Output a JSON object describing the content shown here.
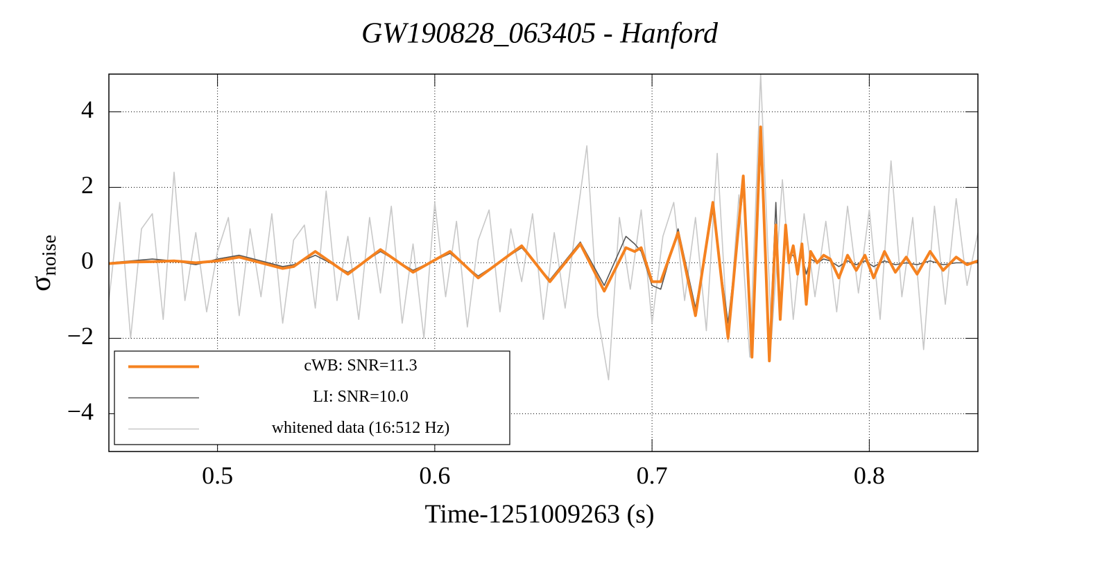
{
  "chart_data": {
    "type": "line",
    "title": "GW190828_063405 - Hanford",
    "xlabel": "Time-1251009263 (s)",
    "ylabel": {
      "symbol": "σ",
      "subscript": "noise"
    },
    "xlim": [
      0.45,
      0.85
    ],
    "ylim": [
      -5,
      5
    ],
    "xticks": [
      0.5,
      0.6,
      0.7,
      0.8
    ],
    "yticks": [
      {
        "value": -4,
        "label": "−4"
      },
      {
        "value": -2,
        "label": "−2"
      },
      0,
      2,
      4
    ],
    "grid": true,
    "legend": "lower left",
    "series": [
      {
        "name": "cWB: SNR=11.3",
        "color": "#f58220",
        "x": [
          0.45,
          0.46,
          0.47,
          0.48,
          0.49,
          0.5,
          0.51,
          0.52,
          0.53,
          0.535,
          0.545,
          0.56,
          0.575,
          0.59,
          0.607,
          0.62,
          0.64,
          0.653,
          0.667,
          0.678,
          0.688,
          0.692,
          0.695,
          0.7,
          0.704,
          0.712,
          0.72,
          0.728,
          0.735,
          0.742,
          0.746,
          0.75,
          0.754,
          0.757,
          0.759,
          0.7615,
          0.763,
          0.765,
          0.767,
          0.769,
          0.771,
          0.773,
          0.776,
          0.779,
          0.782,
          0.786,
          0.79,
          0.794,
          0.798,
          0.802,
          0.807,
          0.812,
          0.817,
          0.822,
          0.828,
          0.834,
          0.84,
          0.845,
          0.85
        ],
        "values": [
          -0.02,
          0.02,
          0.03,
          0.05,
          0.0,
          0.05,
          0.15,
          0.0,
          -0.15,
          -0.1,
          0.3,
          -0.3,
          0.35,
          -0.25,
          0.3,
          -0.4,
          0.45,
          -0.5,
          0.5,
          -0.75,
          0.4,
          0.3,
          0.4,
          -0.5,
          -0.5,
          0.8,
          -1.4,
          1.6,
          -2.0,
          2.3,
          -2.5,
          3.6,
          -2.6,
          1.0,
          -1.5,
          1.0,
          0.0,
          0.45,
          -0.3,
          0.5,
          -1.1,
          0.3,
          0.0,
          0.2,
          0.1,
          -0.4,
          0.2,
          -0.2,
          0.2,
          -0.4,
          0.3,
          -0.25,
          0.15,
          -0.3,
          0.3,
          -0.2,
          0.15,
          -0.05,
          0.05
        ]
      },
      {
        "name": "LI: SNR=10.0",
        "color": "#555555",
        "x": [
          0.45,
          0.46,
          0.47,
          0.48,
          0.49,
          0.5,
          0.51,
          0.52,
          0.53,
          0.535,
          0.545,
          0.56,
          0.575,
          0.59,
          0.607,
          0.62,
          0.64,
          0.653,
          0.667,
          0.678,
          0.688,
          0.692,
          0.695,
          0.7,
          0.704,
          0.712,
          0.72,
          0.728,
          0.735,
          0.742,
          0.746,
          0.75,
          0.754,
          0.757,
          0.759,
          0.7615,
          0.763,
          0.765,
          0.767,
          0.769,
          0.771,
          0.773,
          0.776,
          0.779,
          0.782,
          0.786,
          0.79,
          0.794,
          0.798,
          0.802,
          0.807,
          0.812,
          0.817,
          0.822,
          0.828,
          0.834,
          0.84,
          0.845,
          0.85
        ],
        "values": [
          0.0,
          0.05,
          0.1,
          0.05,
          -0.05,
          0.1,
          0.2,
          0.05,
          -0.1,
          -0.05,
          0.2,
          -0.25,
          0.3,
          -0.2,
          0.25,
          -0.35,
          0.4,
          -0.45,
          0.55,
          -0.6,
          0.7,
          0.5,
          0.3,
          -0.6,
          -0.7,
          0.9,
          -1.2,
          1.4,
          -1.6,
          2.0,
          -2.2,
          3.0,
          -2.4,
          1.6,
          -1.4,
          0.6,
          0.2,
          0.2,
          -0.1,
          0.2,
          -0.3,
          0.1,
          0.0,
          0.1,
          0.05,
          -0.1,
          0.05,
          -0.05,
          0.05,
          -0.1,
          0.05,
          -0.05,
          0.0,
          -0.05,
          0.05,
          -0.05,
          0.0,
          0.0,
          0.0
        ]
      },
      {
        "name": "whitened data (16:512 Hz)",
        "color": "#c8c8c8",
        "x": [
          0.45,
          0.455,
          0.46,
          0.465,
          0.47,
          0.475,
          0.48,
          0.485,
          0.49,
          0.495,
          0.5,
          0.505,
          0.51,
          0.515,
          0.52,
          0.525,
          0.53,
          0.535,
          0.54,
          0.545,
          0.55,
          0.555,
          0.56,
          0.565,
          0.57,
          0.575,
          0.58,
          0.585,
          0.59,
          0.595,
          0.6,
          0.605,
          0.61,
          0.615,
          0.62,
          0.625,
          0.63,
          0.635,
          0.64,
          0.645,
          0.65,
          0.655,
          0.66,
          0.665,
          0.67,
          0.675,
          0.68,
          0.685,
          0.69,
          0.695,
          0.7,
          0.705,
          0.71,
          0.715,
          0.72,
          0.725,
          0.73,
          0.735,
          0.74,
          0.745,
          0.75,
          0.755,
          0.76,
          0.765,
          0.77,
          0.775,
          0.78,
          0.785,
          0.79,
          0.795,
          0.8,
          0.805,
          0.81,
          0.815,
          0.82,
          0.825,
          0.83,
          0.835,
          0.84,
          0.845,
          0.85
        ],
        "values": [
          -1.0,
          1.6,
          -2.0,
          0.9,
          1.3,
          -1.5,
          2.4,
          -1.0,
          0.8,
          -1.3,
          0.3,
          1.2,
          -1.4,
          0.9,
          -0.9,
          1.3,
          -1.6,
          0.6,
          1.0,
          -1.2,
          1.9,
          -1.0,
          0.7,
          -1.5,
          1.2,
          -0.8,
          1.5,
          -1.6,
          0.5,
          -2.0,
          1.6,
          -0.9,
          1.1,
          -1.7,
          0.6,
          1.4,
          -1.3,
          0.9,
          -0.5,
          1.3,
          -1.5,
          0.8,
          -1.2,
          1.0,
          3.1,
          -1.4,
          -3.1,
          1.2,
          -0.7,
          1.4,
          -1.6,
          0.7,
          1.6,
          -1.0,
          1.2,
          -1.8,
          2.9,
          -2.1,
          1.8,
          -2.5,
          5.0,
          -2.0,
          2.2,
          -1.5,
          1.3,
          -0.9,
          1.1,
          -1.3,
          1.5,
          -0.8,
          1.4,
          -1.5,
          2.7,
          -0.9,
          1.2,
          -2.3,
          1.5,
          -1.1,
          1.7,
          -0.6,
          0.8
        ]
      }
    ]
  }
}
